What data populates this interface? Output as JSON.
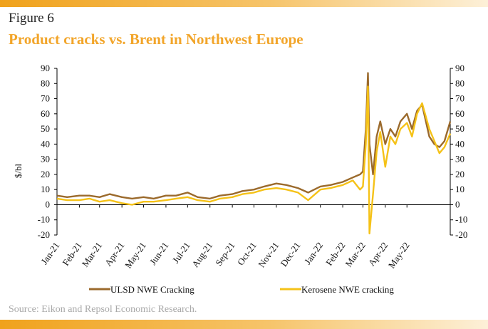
{
  "header": {
    "figure_label": "Figure 6",
    "title": "Product cracks vs. Brent in Northwest Europe"
  },
  "footer": {
    "source": "Source: Eikon and Repsol Economic Research."
  },
  "colors": {
    "accent": "#f0a21c",
    "title": "#f2a52a",
    "ulsd": "#9b6a2c",
    "kerosene": "#f5c218"
  },
  "chart_data": {
    "type": "line",
    "title": "",
    "xlabel": "",
    "ylabel": "$/bl",
    "ylim": [
      -20,
      90
    ],
    "yticks": [
      -20,
      -10,
      0,
      10,
      20,
      30,
      40,
      50,
      60,
      70,
      80,
      90
    ],
    "y2ticks": [
      -20,
      -10,
      0,
      10,
      20,
      30,
      40,
      50,
      60,
      70,
      80,
      90
    ],
    "grid": false,
    "legend_position": "bottom",
    "xlim": [
      "2021-01-01",
      "2022-06-30"
    ],
    "x_tick_labels": [
      "Jan-21",
      "Feb-21",
      "Mar-21",
      "Apr-21",
      "May-21",
      "Jun-21",
      "Jul-21",
      "Aug-21",
      "Sep-21",
      "Oct-21",
      "Nov-21",
      "Dec-21",
      "Jan-22",
      "Feb-22",
      "Mar-22",
      "Apr-22",
      "May-22"
    ],
    "x": [
      "2021-01-01",
      "2021-01-15",
      "2021-02-01",
      "2021-02-15",
      "2021-03-01",
      "2021-03-15",
      "2021-04-01",
      "2021-04-15",
      "2021-05-01",
      "2021-05-15",
      "2021-06-01",
      "2021-06-15",
      "2021-07-01",
      "2021-07-15",
      "2021-08-01",
      "2021-08-15",
      "2021-09-01",
      "2021-09-15",
      "2021-10-01",
      "2021-10-15",
      "2021-11-01",
      "2021-11-15",
      "2021-12-01",
      "2021-12-15",
      "2022-01-01",
      "2022-01-15",
      "2022-02-01",
      "2022-02-15",
      "2022-02-25",
      "2022-03-01",
      "2022-03-05",
      "2022-03-08",
      "2022-03-10",
      "2022-03-15",
      "2022-03-20",
      "2022-03-25",
      "2022-04-01",
      "2022-04-08",
      "2022-04-15",
      "2022-04-22",
      "2022-05-01",
      "2022-05-08",
      "2022-05-15",
      "2022-05-22",
      "2022-06-01",
      "2022-06-08",
      "2022-06-15",
      "2022-06-22",
      "2022-06-30"
    ],
    "series": [
      {
        "name": "ULSD NWE Cracking",
        "values": [
          6,
          5,
          6,
          6,
          5,
          7,
          5,
          4,
          5,
          4,
          6,
          6,
          8,
          5,
          4,
          6,
          7,
          9,
          10,
          12,
          14,
          13,
          11,
          8,
          12,
          13,
          15,
          18,
          20,
          22,
          50,
          87,
          40,
          20,
          45,
          55,
          40,
          50,
          45,
          55,
          60,
          50,
          62,
          66,
          45,
          40,
          38,
          42,
          55
        ]
      },
      {
        "name": "Kerosene NWE cracking",
        "values": [
          4,
          3,
          3,
          4,
          2,
          3,
          1,
          0,
          2,
          2,
          3,
          4,
          5,
          3,
          2,
          4,
          5,
          7,
          8,
          10,
          11,
          10,
          8,
          3,
          10,
          11,
          13,
          16,
          10,
          12,
          40,
          78,
          -19,
          7,
          35,
          48,
          25,
          45,
          40,
          50,
          54,
          45,
          60,
          67,
          50,
          42,
          34,
          38,
          47
        ]
      }
    ]
  }
}
